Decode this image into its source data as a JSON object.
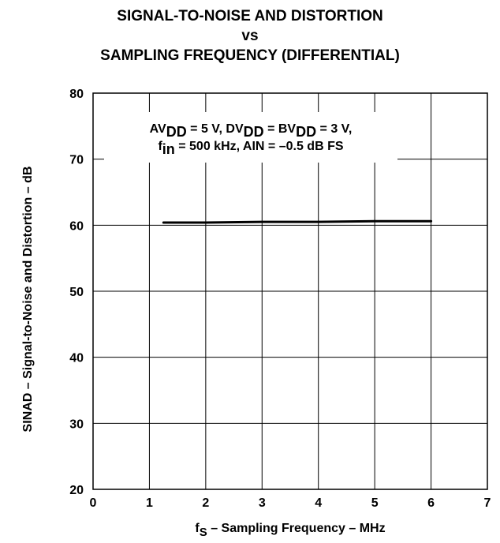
{
  "chart_data": {
    "type": "line",
    "title_lines": [
      "SIGNAL-TO-NOISE AND DISTORTION",
      "vs",
      "SAMPLING FREQUENCY (DIFFERENTIAL)"
    ],
    "xlabel": {
      "main": "f",
      "sub": "S",
      "rest": " – Sampling Frequency – MHz"
    },
    "ylabel": "SINAD – Signal-to-Noise and Distortion – dB",
    "xlim": [
      0,
      7
    ],
    "ylim": [
      20,
      80
    ],
    "x_ticks": [
      "0",
      "1",
      "2",
      "3",
      "4",
      "5",
      "6",
      "7"
    ],
    "y_ticks": [
      "20",
      "30",
      "40",
      "50",
      "60",
      "70",
      "80"
    ],
    "grid": true,
    "annotation": {
      "line1": [
        {
          "t": "AV",
          "sub": false
        },
        {
          "t": "DD",
          "sub": true
        },
        {
          "t": " = 5 V, DV",
          "sub": false
        },
        {
          "t": "DD",
          "sub": true
        },
        {
          "t": " = BV",
          "sub": false
        },
        {
          "t": "DD",
          "sub": true
        },
        {
          "t": " = 3 V,",
          "sub": false
        }
      ],
      "line2": [
        {
          "t": "f",
          "sub": false
        },
        {
          "t": "in",
          "sub": true
        },
        {
          "t": " = 500 kHz, AIN = –0.5 dB FS",
          "sub": false
        }
      ]
    },
    "series": [
      {
        "x": [
          1.25,
          2,
          3,
          4,
          5,
          6
        ],
        "y": [
          60.4,
          60.4,
          60.5,
          60.5,
          60.6,
          60.6
        ],
        "color": "#000000"
      }
    ]
  }
}
